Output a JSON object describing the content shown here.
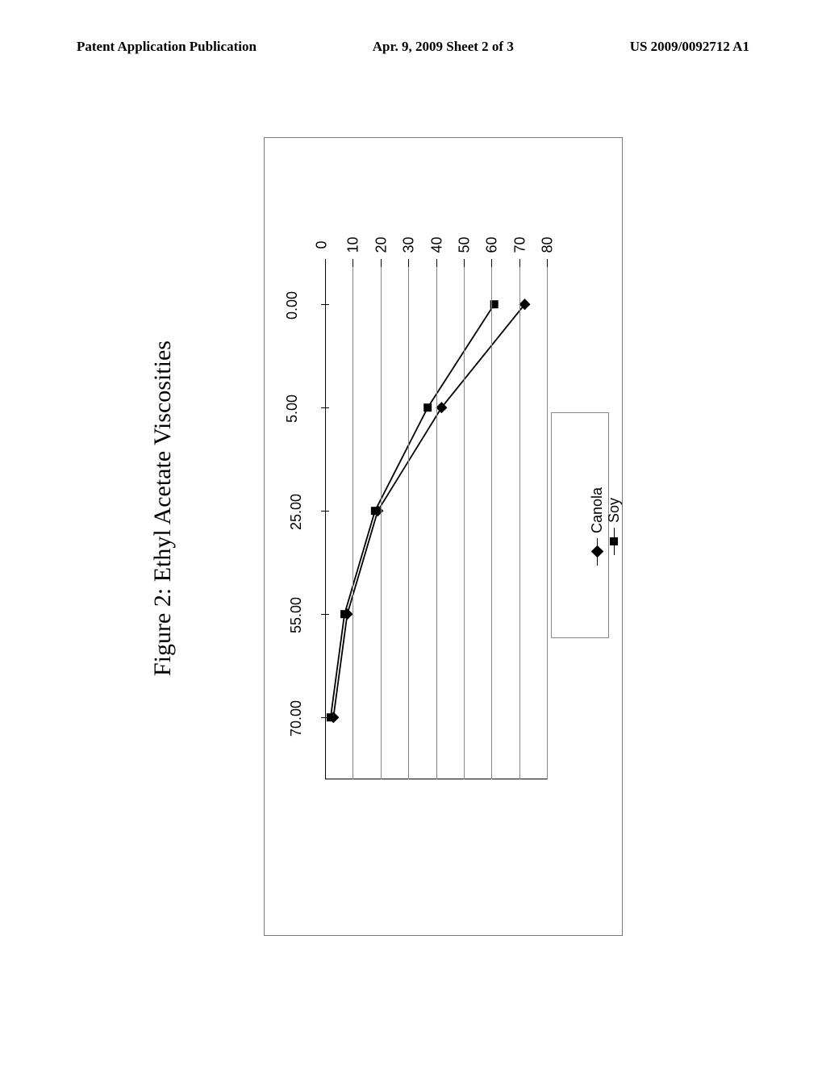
{
  "header": {
    "left": "Patent Application Publication",
    "center": "Apr. 9, 2009  Sheet 2 of 3",
    "right": "US 2009/0092712 A1"
  },
  "figure": {
    "title": "Figure 2: Ethyl Acetate Viscosities",
    "chart": {
      "type": "line",
      "x_values": [
        0.0,
        5.0,
        25.0,
        55.0,
        70.0
      ],
      "x_tick_labels": [
        "0.00",
        "5.00",
        "25.00",
        "55.00",
        "70.00"
      ],
      "series": [
        {
          "name": "Canola",
          "marker": "diamond",
          "y_values": [
            72,
            42,
            19,
            8,
            3
          ]
        },
        {
          "name": "Soy",
          "marker": "square",
          "y_values": [
            61,
            37,
            18,
            7,
            2
          ]
        }
      ],
      "y_ticks": [
        0,
        10,
        20,
        30,
        40,
        50,
        60,
        70,
        80
      ],
      "ylim": [
        0,
        80
      ],
      "xlim": [
        0,
        75
      ],
      "line_color": "#000000",
      "marker_color": "#000000",
      "grid_color": "#888888",
      "background_color": "#ffffff",
      "tick_fontsize": 18,
      "title_fontsize": 30
    },
    "legend": {
      "items": [
        {
          "label": "Canola",
          "marker": "diamond"
        },
        {
          "label": "Soy",
          "marker": "square"
        }
      ]
    }
  }
}
